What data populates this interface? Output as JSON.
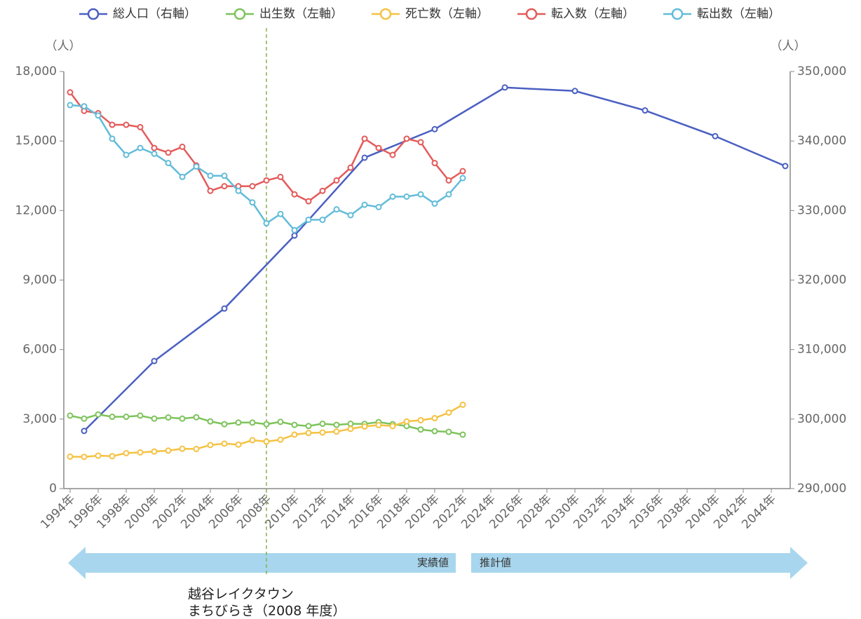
{
  "chart_data": {
    "type": "line",
    "xlim": [
      1993.55,
      2045.35
    ],
    "xticks": [
      {
        "value": 1994,
        "label": "1994年"
      },
      {
        "value": 1996,
        "label": "1996年"
      },
      {
        "value": 1998,
        "label": "1998年"
      },
      {
        "value": 2000,
        "label": "2000年"
      },
      {
        "value": 2002,
        "label": "2002年"
      },
      {
        "value": 2004,
        "label": "2004年"
      },
      {
        "value": 2006,
        "label": "2006年"
      },
      {
        "value": 2008,
        "label": "2008年"
      },
      {
        "value": 2010,
        "label": "2010年"
      },
      {
        "value": 2012,
        "label": "2012年"
      },
      {
        "value": 2014,
        "label": "2014年"
      },
      {
        "value": 2016,
        "label": "2016年"
      },
      {
        "value": 2018,
        "label": "2018年"
      },
      {
        "value": 2020,
        "label": "2020年"
      },
      {
        "value": 2022,
        "label": "2022年"
      },
      {
        "value": 2024,
        "label": "2024年"
      },
      {
        "value": 2026,
        "label": "2026年"
      },
      {
        "value": 2028,
        "label": "2028年"
      },
      {
        "value": 2030,
        "label": "2030年"
      },
      {
        "value": 2032,
        "label": "2032年"
      },
      {
        "value": 2034,
        "label": "2034年"
      },
      {
        "value": 2036,
        "label": "2036年"
      },
      {
        "value": 2038,
        "label": "2038年"
      },
      {
        "value": 2040,
        "label": "2040年"
      },
      {
        "value": 2042,
        "label": "2042年"
      },
      {
        "value": 2044,
        "label": "2044年"
      }
    ],
    "ylim": [
      0,
      18000
    ],
    "yticks": [
      0,
      {
        "value": 3000,
        "label": "3,000"
      },
      {
        "value": 6000,
        "label": "6,000"
      },
      {
        "value": 9000,
        "label": "9,000"
      },
      {
        "value": 12000,
        "label": "12,000"
      },
      {
        "value": 15000,
        "label": "15,000"
      },
      {
        "value": 18000,
        "label": "18,000"
      }
    ],
    "y2lim": [
      290000,
      350000
    ],
    "y2ticks": [
      {
        "value": 290000,
        "label": "290,000"
      },
      {
        "value": 300000,
        "label": "300,000"
      },
      {
        "value": 310000,
        "label": "310,000"
      },
      {
        "value": 320000,
        "label": "320,000"
      },
      {
        "value": 330000,
        "label": "330,000"
      },
      {
        "value": 340000,
        "label": "340,000"
      },
      {
        "value": 350000,
        "label": "350,000"
      }
    ],
    "ylabel": "（人）",
    "y2label": "（人）",
    "series": [
      {
        "name": "総人口（右軸）",
        "color": "#4a5fc1",
        "axis": "y2",
        "x": [
          1995,
          2000,
          2005,
          2010,
          2015,
          2020,
          2025,
          2030,
          2035,
          2040,
          2045
        ],
        "values": [
          298300,
          308350,
          315900,
          326400,
          337600,
          341700,
          347700,
          347200,
          344400,
          340700,
          336400
        ]
      },
      {
        "name": "出生数（左軸）",
        "color": "#7dc35b",
        "x": [
          1994,
          1995,
          1996,
          1997,
          1998,
          1999,
          2000,
          2001,
          2002,
          2003,
          2004,
          2005,
          2006,
          2007,
          2008,
          2009,
          2010,
          2011,
          2012,
          2013,
          2014,
          2015,
          2016,
          2017,
          2018,
          2019,
          2020,
          2021,
          2022
        ],
        "values": [
          3150,
          3020,
          3200,
          3100,
          3100,
          3150,
          3020,
          3070,
          3020,
          3080,
          2900,
          2780,
          2850,
          2850,
          2780,
          2880,
          2750,
          2700,
          2800,
          2750,
          2800,
          2790,
          2870,
          2780,
          2700,
          2550,
          2480,
          2450,
          2330
        ]
      },
      {
        "name": "死亡数（左軸）",
        "color": "#f5c242",
        "x": [
          1994,
          1995,
          1996,
          1997,
          1998,
          1999,
          2000,
          2001,
          2002,
          2003,
          2004,
          2005,
          2006,
          2007,
          2008,
          2009,
          2010,
          2011,
          2012,
          2013,
          2014,
          2015,
          2016,
          2017,
          2018,
          2019,
          2020,
          2021,
          2022
        ],
        "values": [
          1380,
          1370,
          1420,
          1400,
          1530,
          1560,
          1600,
          1640,
          1720,
          1710,
          1880,
          1940,
          1900,
          2090,
          2030,
          2110,
          2330,
          2400,
          2420,
          2460,
          2580,
          2680,
          2740,
          2700,
          2900,
          2950,
          3040,
          3280,
          3620
        ]
      },
      {
        "name": "転入数（左軸）",
        "color": "#e45a5a",
        "x": [
          1994,
          1995,
          1996,
          1997,
          1998,
          1999,
          2000,
          2001,
          2002,
          2003,
          2004,
          2005,
          2006,
          2007,
          2008,
          2009,
          2010,
          2011,
          2012,
          2013,
          2014,
          2015,
          2016,
          2017,
          2018,
          2019,
          2020,
          2021,
          2022
        ],
        "values": [
          17100,
          16300,
          16200,
          15700,
          15700,
          15600,
          14700,
          14500,
          14750,
          13950,
          12850,
          13050,
          13050,
          13050,
          13300,
          13450,
          12700,
          12400,
          12850,
          13300,
          13850,
          15100,
          14700,
          14400,
          15100,
          14950,
          14050,
          13300,
          13700
        ]
      },
      {
        "name": "転出数（左軸）",
        "color": "#62bcd9",
        "x": [
          1994,
          1995,
          1996,
          1997,
          1998,
          1999,
          2000,
          2001,
          2002,
          2003,
          2004,
          2005,
          2006,
          2007,
          2008,
          2009,
          2010,
          2011,
          2012,
          2013,
          2014,
          2015,
          2016,
          2017,
          2018,
          2019,
          2020,
          2021,
          2022
        ],
        "values": [
          16550,
          16500,
          16100,
          15100,
          14400,
          14700,
          14450,
          14050,
          13450,
          13900,
          13500,
          13500,
          12850,
          12350,
          11450,
          11850,
          11150,
          11600,
          11600,
          12050,
          11800,
          12250,
          12150,
          12600,
          12600,
          12700,
          12300,
          12700,
          13400
        ]
      }
    ],
    "period_labels": [
      "実績値",
      "推計値"
    ],
    "annotation": {
      "x": 2008,
      "lines": [
        "越谷レイクタウン",
        "まちびらき（2008 年度）"
      ]
    }
  }
}
